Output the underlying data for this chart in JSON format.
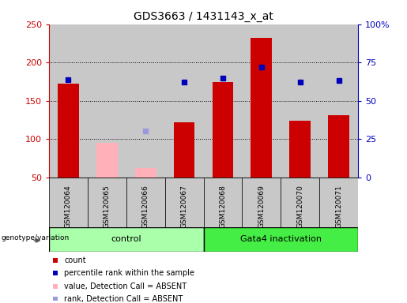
{
  "title": "GDS3663 / 1431143_x_at",
  "samples": [
    "GSM120064",
    "GSM120065",
    "GSM120066",
    "GSM120067",
    "GSM120068",
    "GSM120069",
    "GSM120070",
    "GSM120071"
  ],
  "count_values": [
    172,
    0,
    0,
    122,
    174,
    232,
    124,
    131
  ],
  "count_absent": [
    0,
    95,
    62,
    0,
    0,
    0,
    0,
    0
  ],
  "percentile_values": [
    64,
    0,
    0,
    62,
    65,
    72,
    62,
    63
  ],
  "percentile_absent": [
    0,
    0,
    30,
    0,
    0,
    0,
    0,
    0
  ],
  "ylim_left": [
    50,
    250
  ],
  "ylim_right": [
    0,
    100
  ],
  "left_yticks": [
    50,
    100,
    150,
    200,
    250
  ],
  "right_yticks": [
    0,
    25,
    50,
    75,
    100
  ],
  "right_yticklabels": [
    "0",
    "25",
    "50",
    "75",
    "100%"
  ],
  "grid_lines": [
    100,
    150,
    200
  ],
  "ylabel_left_color": "#CC0000",
  "ylabel_right_color": "#0000BB",
  "count_color": "#CC0000",
  "count_absent_color": "#FFB0B8",
  "percentile_color": "#0000BB",
  "percentile_absent_color": "#9999DD",
  "col_bg_color": "#C8C8C8",
  "control_color": "#AAFFAA",
  "gata4_color": "#44EE44",
  "control_samples": [
    0,
    1,
    2,
    3
  ],
  "gata4_samples": [
    4,
    5,
    6,
    7
  ],
  "legend_items": [
    {
      "label": "count",
      "color": "#CC0000",
      "marker": "s"
    },
    {
      "label": "percentile rank within the sample",
      "color": "#0000BB",
      "marker": "s"
    },
    {
      "label": "value, Detection Call = ABSENT",
      "color": "#FFB0B8",
      "marker": "s"
    },
    {
      "label": "rank, Detection Call = ABSENT",
      "color": "#9999DD",
      "marker": "s"
    }
  ]
}
